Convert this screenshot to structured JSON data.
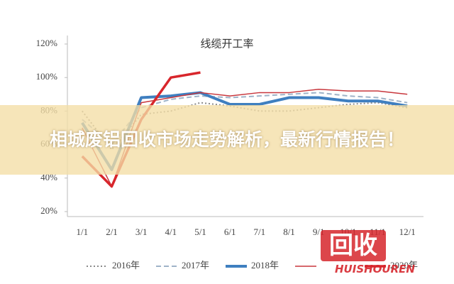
{
  "chart_data": {
    "type": "line",
    "title": "线缆开工率",
    "categories": [
      "1/1",
      "2/1",
      "3/1",
      "4/1",
      "5/1",
      "6/1",
      "7/1",
      "8/1",
      "9/1",
      "10/1",
      "11/1",
      "12/1"
    ],
    "ylim": [
      20,
      120
    ],
    "yticks": [
      {
        "value": 20,
        "label": "20%"
      },
      {
        "value": 40,
        "label": "40%"
      },
      {
        "value": 60,
        "label": "60%"
      },
      {
        "value": 80,
        "label": "80%"
      },
      {
        "value": 100,
        "label": "100%"
      },
      {
        "value": 120,
        "label": "120%"
      }
    ],
    "grid": false,
    "series": [
      {
        "name": "2016年",
        "color": "#8a8a8a",
        "line_style": "dotted",
        "linewidth": 2,
        "values": [
          80,
          57,
          78,
          80,
          85,
          83,
          80,
          80,
          82,
          84,
          85,
          82
        ]
      },
      {
        "name": "2017年",
        "color": "#9fb3c8",
        "line_style": "dashed",
        "linewidth": 2,
        "values": [
          75,
          60,
          82,
          87,
          89,
          88,
          89,
          90,
          91,
          89,
          88,
          85
        ]
      },
      {
        "name": "2018年",
        "color": "#3f7fc0",
        "line_style": "solid",
        "linewidth": 4,
        "values": [
          73,
          45,
          88,
          89,
          91,
          84,
          84,
          88,
          88,
          86,
          86,
          83
        ]
      },
      {
        "name": null,
        "color": "#c8373d",
        "line_style": "solid",
        "linewidth": 1.5,
        "values": [
          70,
          35,
          85,
          88,
          91,
          89,
          91,
          91,
          93,
          92,
          92,
          90
        ]
      },
      {
        "name": "2020年",
        "color": "#d8262c",
        "line_style": "solid",
        "linewidth": 3.5,
        "values": [
          53,
          35,
          75,
          100,
          103,
          null,
          null,
          null,
          null,
          null,
          null,
          null
        ]
      }
    ]
  },
  "banner": {
    "text": "相城废铝回收市场走势解析，最新行情报告！"
  },
  "watermark": {
    "logo": "回收",
    "brand": "HUISHOUREN"
  }
}
